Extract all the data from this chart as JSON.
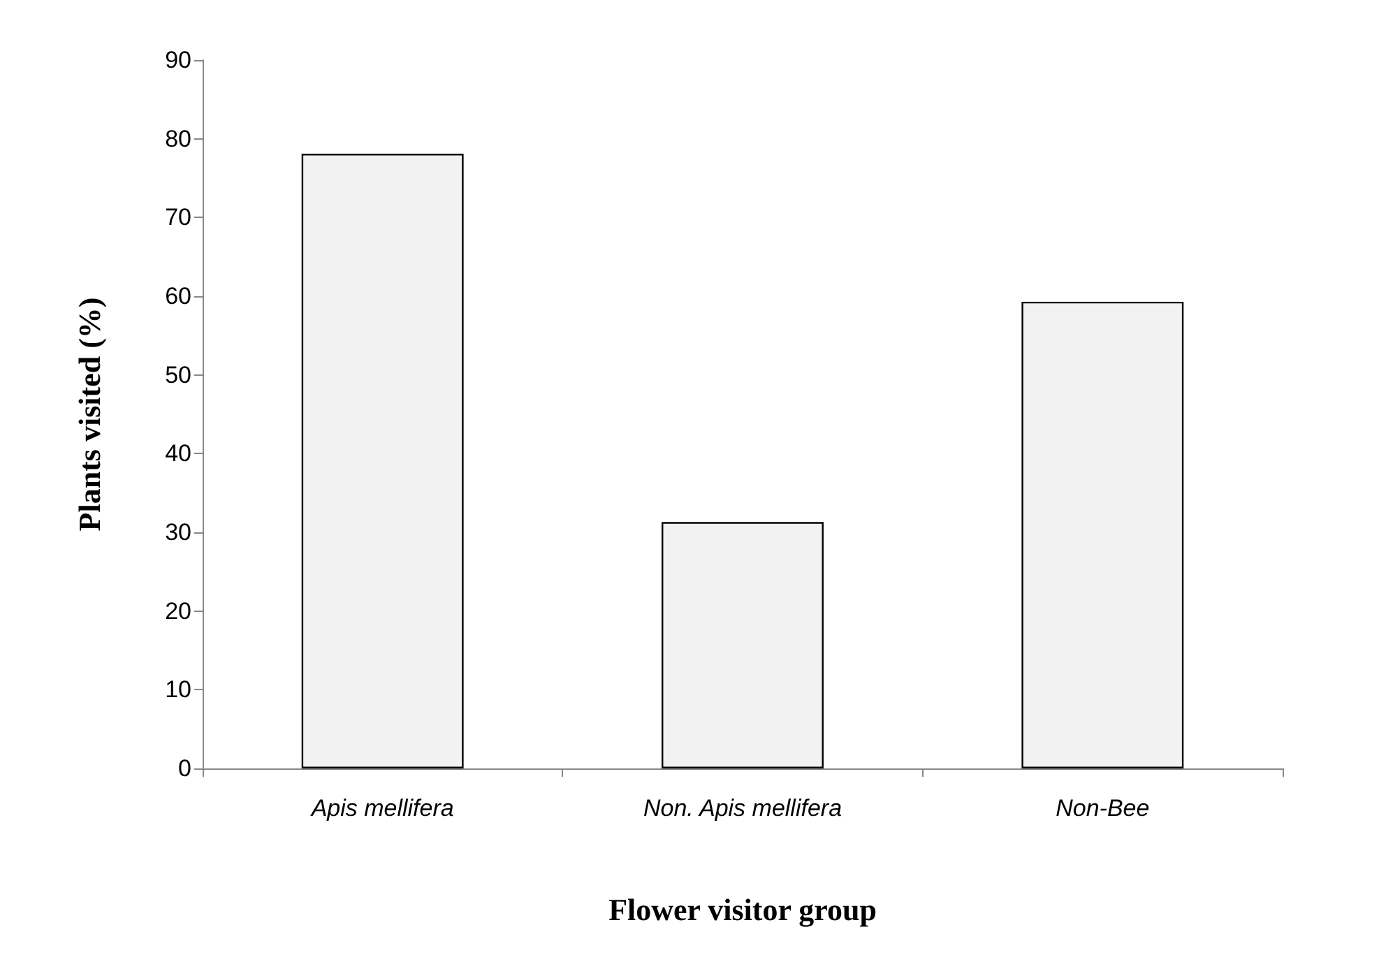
{
  "chart_data": {
    "type": "bar",
    "xlabel": "Flower visitor group",
    "ylabel": "Plants visited (%)",
    "categories": [
      "Apis mellifera",
      "Non. Apis mellifera",
      "Non-Bee"
    ],
    "values": [
      78.1,
      31.3,
      59.3
    ],
    "color": "#f2f2f2",
    "ylim": [
      0,
      90
    ],
    "yticks": [
      0,
      10,
      20,
      30,
      40,
      50,
      60,
      70,
      80,
      90
    ],
    "grid": false
  }
}
